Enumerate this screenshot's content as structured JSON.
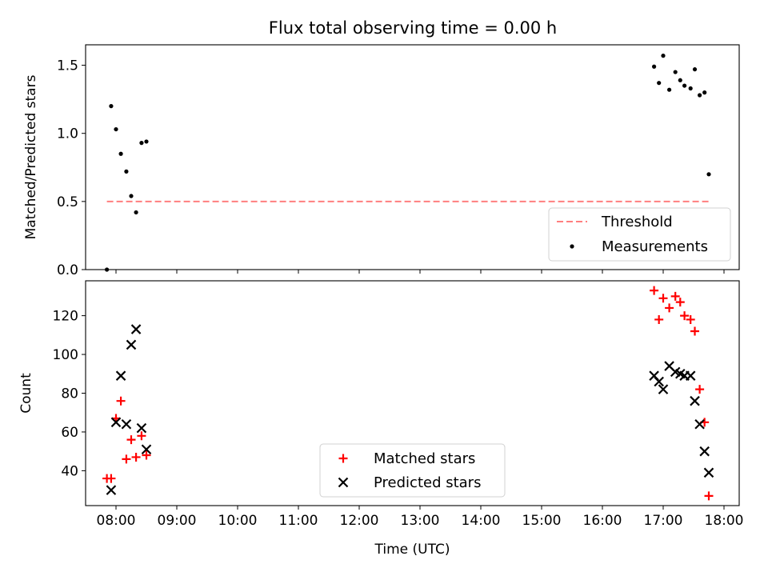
{
  "figure": {
    "title": "Flux total observing time = 0.00 h"
  },
  "chart_data": [
    {
      "type": "scatter",
      "panel": "top",
      "title": "Flux total observing time = 0.00 h",
      "xlabel": "",
      "ylabel": "Matched/Predicted stars",
      "x_unit": "time-of-day (hours UTC)",
      "xlim": [
        7.5,
        18.25
      ],
      "ylim": [
        0,
        1.65
      ],
      "xticks": [
        8,
        9,
        10,
        11,
        12,
        13,
        14,
        15,
        16,
        17,
        18
      ],
      "yticks": [
        0.0,
        0.5,
        1.0,
        1.5
      ],
      "ytick_labels": [
        "0.0",
        "0.5",
        "1.0",
        "1.5"
      ],
      "grid": false,
      "legend": "lower right",
      "series": [
        {
          "name": "Threshold",
          "kind": "line",
          "style": "dashed",
          "color": "#ff7f7f",
          "x": [
            7.85,
            17.75
          ],
          "y": [
            0.5,
            0.5
          ]
        },
        {
          "name": "Measurements",
          "kind": "scatter",
          "marker": "dot",
          "color": "#000000",
          "x": [
            7.85,
            7.92,
            8.0,
            8.08,
            8.17,
            8.25,
            8.33,
            8.42,
            8.5,
            16.85,
            16.93,
            17.0,
            17.1,
            17.2,
            17.28,
            17.35,
            17.45,
            17.52,
            17.6,
            17.68,
            17.75
          ],
          "y": [
            0.0,
            1.2,
            1.03,
            0.85,
            0.72,
            0.54,
            0.42,
            0.93,
            0.94,
            1.49,
            1.37,
            1.57,
            1.32,
            1.45,
            1.39,
            1.35,
            1.33,
            1.47,
            1.28,
            1.3,
            0.7
          ]
        }
      ]
    },
    {
      "type": "scatter",
      "panel": "bottom",
      "xlabel": "Time (UTC)",
      "ylabel": "Count",
      "x_unit": "time-of-day (hours UTC)",
      "xlim": [
        7.5,
        18.25
      ],
      "ylim": [
        22,
        138
      ],
      "xticks": [
        8,
        9,
        10,
        11,
        12,
        13,
        14,
        15,
        16,
        17,
        18
      ],
      "xtick_labels": [
        "08:00",
        "09:00",
        "10:00",
        "11:00",
        "12:00",
        "13:00",
        "14:00",
        "15:00",
        "16:00",
        "17:00",
        "18:00"
      ],
      "yticks": [
        40,
        60,
        80,
        100,
        120
      ],
      "grid": false,
      "legend": "lower center",
      "series": [
        {
          "name": "Matched stars",
          "marker": "plus",
          "color": "#ff0000",
          "x": [
            7.85,
            7.92,
            8.0,
            8.08,
            8.17,
            8.25,
            8.33,
            8.42,
            8.5,
            16.85,
            16.93,
            17.0,
            17.1,
            17.2,
            17.28,
            17.35,
            17.45,
            17.52,
            17.6,
            17.68,
            17.75
          ],
          "y": [
            36,
            36,
            67,
            76,
            46,
            56,
            47,
            58,
            48,
            133,
            118,
            129,
            124,
            130,
            127,
            120,
            118,
            112,
            82,
            65,
            27
          ]
        },
        {
          "name": "Predicted stars",
          "marker": "x",
          "color": "#000000",
          "x": [
            7.92,
            8.0,
            8.08,
            8.17,
            8.25,
            8.33,
            8.42,
            8.5,
            16.85,
            16.93,
            17.0,
            17.1,
            17.2,
            17.28,
            17.35,
            17.45,
            17.52,
            17.6,
            17.68,
            17.75
          ],
          "y": [
            30,
            65,
            89,
            64,
            105,
            113,
            62,
            51,
            89,
            86,
            82,
            94,
            91,
            90,
            89,
            89,
            76,
            64,
            50,
            39
          ]
        }
      ]
    }
  ]
}
